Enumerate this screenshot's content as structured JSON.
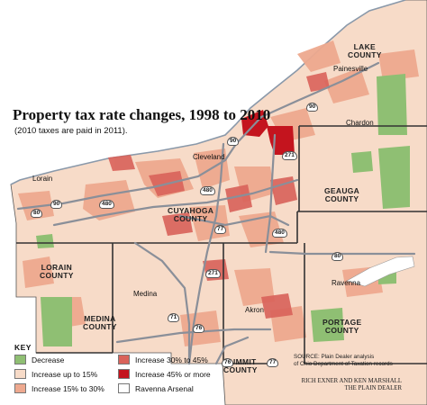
{
  "title": "Property tax rate changes, 1998 to 2010",
  "subtitle": "(2010 taxes are paid in 2011).",
  "counties": {
    "lake": "LAKE\nCOUNTY",
    "cuyahoga": "CUYAHOGA\nCOUNTY",
    "geauga": "GEAUGA\nCOUNTY",
    "lorain": "LORAIN\nCOUNTY",
    "medina": "MEDINA\nCOUNTY",
    "summit": "SUMMIT\nCOUNTY",
    "portage": "PORTAGE\nCOUNTY"
  },
  "cities": {
    "painesville": "Painesville",
    "chardon": "Chardon",
    "cleveland": "Cleveland",
    "lorain": "Lorain",
    "ravenna": "Ravenna",
    "medina": "Medina",
    "akron": "Akron"
  },
  "highways": [
    "90",
    "90",
    "271",
    "90",
    "480",
    "480",
    "80",
    "77",
    "480",
    "80",
    "271",
    "71",
    "76",
    "77",
    "76"
  ],
  "key": {
    "title": "KEY",
    "items": [
      {
        "label": "Decrease",
        "color": "#8fbf73"
      },
      {
        "label": "Increase up to 15%",
        "color": "#f7dbc8"
      },
      {
        "label": "Increase 15% to 30%",
        "color": "#eea98f"
      },
      {
        "label": "Increase 30% to 45%",
        "color": "#d9625a"
      },
      {
        "label": "Increase 45% or more",
        "color": "#c4141e"
      },
      {
        "label": "Ravenna Arsenal",
        "color": "#ffffff"
      }
    ]
  },
  "source": [
    "SOURCE: Plain Dealer analysis",
    "of Ohio Department of Taxation records"
  ],
  "credit": [
    "RICH EXNER AND KEN MARSHALL",
    "THE PLAIN DEALER"
  ],
  "colors": {
    "lake": "#dbe6ee",
    "base": "#f7dbc8",
    "road": "#8a8f99",
    "border": "#333333"
  }
}
